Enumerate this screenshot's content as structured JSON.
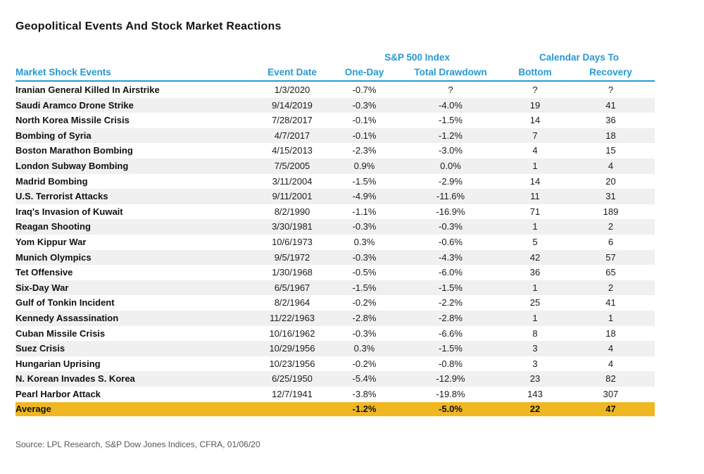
{
  "title": "Geopolitical Events And Stock Market Reactions",
  "source": "Source: LPL Research, S&P Dow Jones Indices, CFRA, 01/06/20",
  "colors": {
    "header_blue": "#2598d5",
    "average_yellow": "#efb722",
    "row_stripe": "#f0f0f0"
  },
  "chart_data": {
    "type": "table",
    "title": "Geopolitical Events And Stock Market Reactions",
    "column_groups": [
      {
        "label": "S&P 500 Index",
        "span": [
          "One-Day",
          "Total Drawdown"
        ]
      },
      {
        "label": "Calendar Days To",
        "span": [
          "Bottom",
          "Recovery"
        ]
      }
    ],
    "columns": [
      "Market Shock Events",
      "Event Date",
      "One-Day",
      "Total Drawdown",
      "Bottom",
      "Recovery"
    ],
    "rows": [
      [
        "Iranian General Killed In Airstrike",
        "1/3/2020",
        "-0.7%",
        "?",
        "?",
        "?"
      ],
      [
        "Saudi Aramco Drone Strike",
        "9/14/2019",
        "-0.3%",
        "-4.0%",
        "19",
        "41"
      ],
      [
        "North Korea Missile Crisis",
        "7/28/2017",
        "-0.1%",
        "-1.5%",
        "14",
        "36"
      ],
      [
        "Bombing of Syria",
        "4/7/2017",
        "-0.1%",
        "-1.2%",
        "7",
        "18"
      ],
      [
        "Boston Marathon Bombing",
        "4/15/2013",
        "-2.3%",
        "-3.0%",
        "4",
        "15"
      ],
      [
        "London Subway Bombing",
        "7/5/2005",
        "0.9%",
        "0.0%",
        "1",
        "4"
      ],
      [
        "Madrid Bombing",
        "3/11/2004",
        "-1.5%",
        "-2.9%",
        "14",
        "20"
      ],
      [
        "U.S. Terrorist Attacks",
        "9/11/2001",
        "-4.9%",
        "-11.6%",
        "11",
        "31"
      ],
      [
        "Iraq's Invasion of Kuwait",
        "8/2/1990",
        "-1.1%",
        "-16.9%",
        "71",
        "189"
      ],
      [
        "Reagan Shooting",
        "3/30/1981",
        "-0.3%",
        "-0.3%",
        "1",
        "2"
      ],
      [
        "Yom Kippur War",
        "10/6/1973",
        "0.3%",
        "-0.6%",
        "5",
        "6"
      ],
      [
        "Munich Olympics",
        "9/5/1972",
        "-0.3%",
        "-4.3%",
        "42",
        "57"
      ],
      [
        "Tet Offensive",
        "1/30/1968",
        "-0.5%",
        "-6.0%",
        "36",
        "65"
      ],
      [
        "Six-Day War",
        "6/5/1967",
        "-1.5%",
        "-1.5%",
        "1",
        "2"
      ],
      [
        "Gulf of Tonkin Incident",
        "8/2/1964",
        "-0.2%",
        "-2.2%",
        "25",
        "41"
      ],
      [
        "Kennedy Assassination",
        "11/22/1963",
        "-2.8%",
        "-2.8%",
        "1",
        "1"
      ],
      [
        "Cuban Missile Crisis",
        "10/16/1962",
        "-0.3%",
        "-6.6%",
        "8",
        "18"
      ],
      [
        "Suez Crisis",
        "10/29/1956",
        "0.3%",
        "-1.5%",
        "3",
        "4"
      ],
      [
        "Hungarian Uprising",
        "10/23/1956",
        "-0.2%",
        "-0.8%",
        "3",
        "4"
      ],
      [
        "N. Korean Invades S. Korea",
        "6/25/1950",
        "-5.4%",
        "-12.9%",
        "23",
        "82"
      ],
      [
        "Pearl Harbor Attack",
        "12/7/1941",
        "-3.8%",
        "-19.8%",
        "143",
        "307"
      ]
    ],
    "average_row": [
      "Average",
      "",
      "-1.2%",
      "-5.0%",
      "22",
      "47"
    ]
  }
}
